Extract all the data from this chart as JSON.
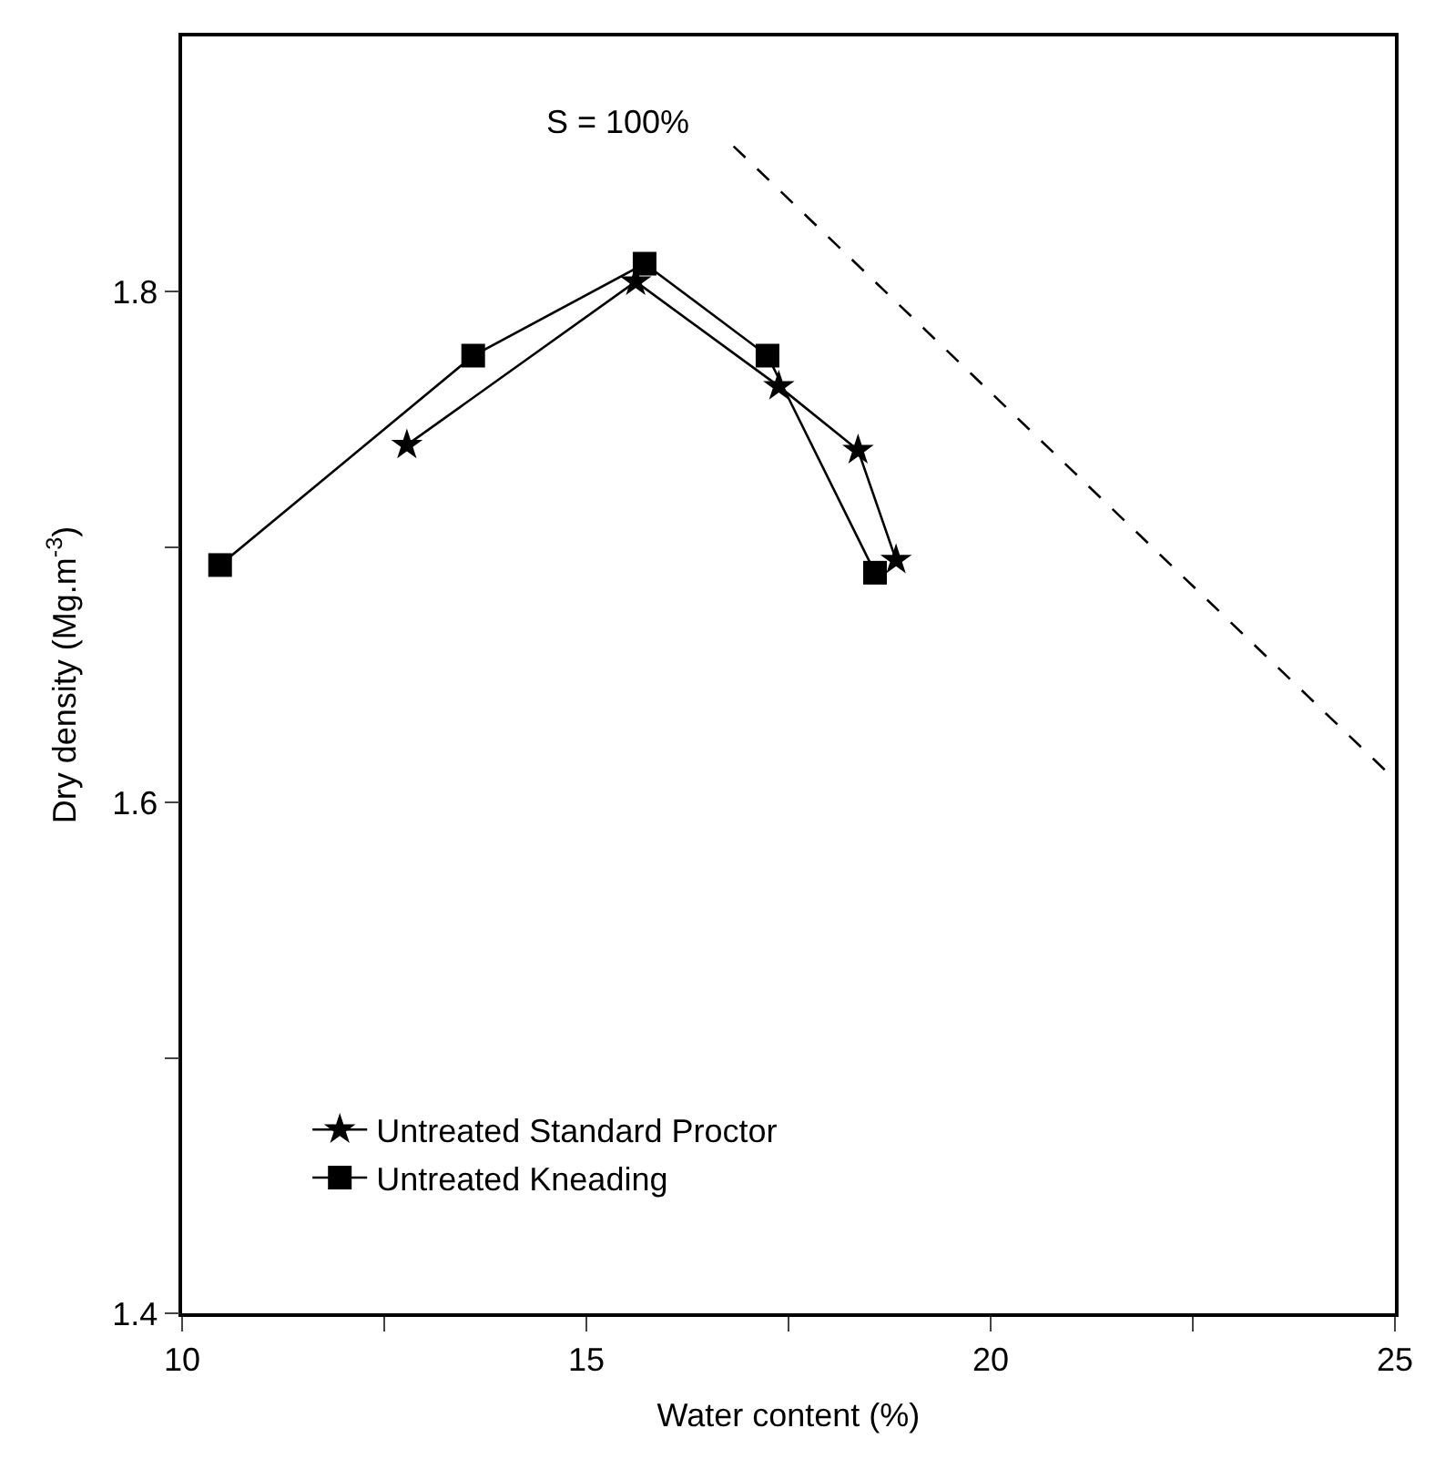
{
  "chart_data": {
    "type": "line",
    "xlabel": "Water content (%)",
    "ylabel": "Dry density (Mg.m$^{-3}$)",
    "xlim": [
      10,
      25
    ],
    "ylim": [
      1.4,
      1.9
    ],
    "xticks": [
      10,
      {
        "value": 12.5,
        "label": null
      },
      15,
      {
        "value": 17.5,
        "label": null
      },
      20,
      {
        "value": 22.5,
        "label": null
      },
      25
    ],
    "yticks": [
      1.4,
      {
        "value": 1.5,
        "label": null
      },
      1.6,
      {
        "value": 1.7,
        "label": null
      },
      1.8
    ],
    "legend": "bottom left",
    "line_style": "solid",
    "series": [
      {
        "name": "Untreated Standard Proctor",
        "color": "#000000",
        "marker": "star",
        "x": [
          12.78,
          15.61,
          17.38,
          18.36,
          18.83
        ],
        "values": [
          1.74,
          1.804,
          1.763,
          1.738,
          1.695
        ]
      },
      {
        "name": "Untreated Kneading",
        "color": "#000000",
        "marker": "square",
        "x": [
          10.47,
          13.6,
          15.72,
          17.24,
          18.57
        ],
        "values": [
          1.693,
          1.775,
          1.811,
          1.775,
          1.69
        ]
      },
      {
        "color": "#000000",
        "marker": "none",
        "line_style": "dashed",
        "x": [
          16.82,
          25
        ],
        "values": [
          1.857,
          1.609
        ]
      }
    ],
    "annotations": [
      "S = 100%"
    ]
  }
}
